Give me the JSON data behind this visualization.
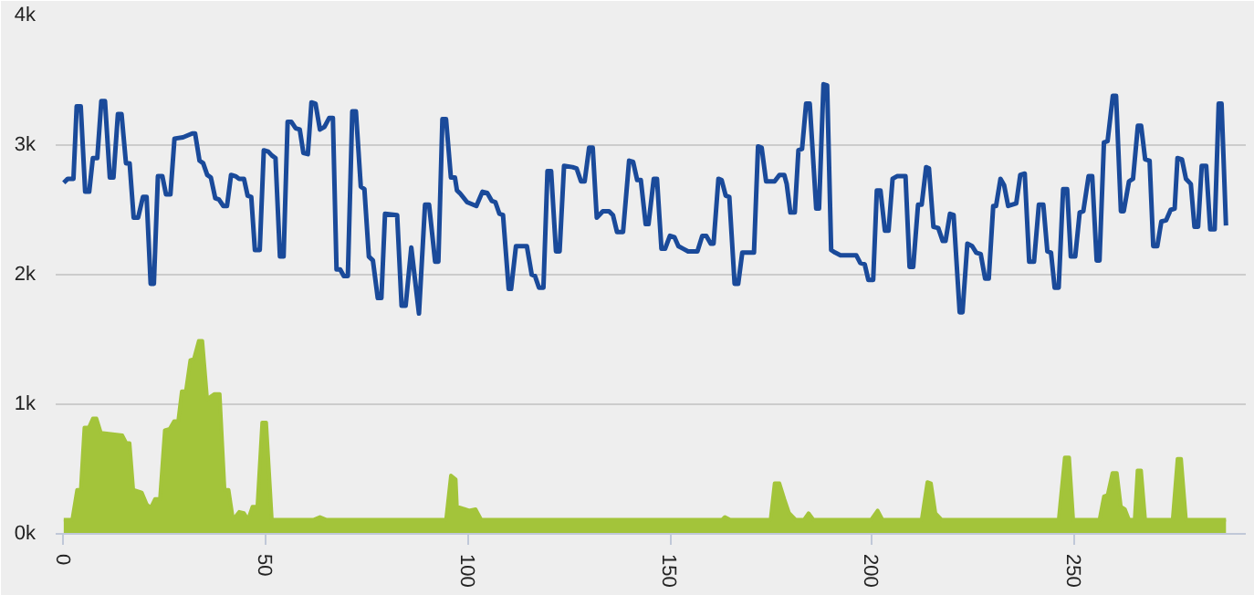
{
  "chart_data": {
    "type": "line",
    "xlim": [
      -2,
      292.5
    ],
    "ylim": [
      0,
      4000
    ],
    "xticks": [
      0,
      50,
      100,
      150,
      200,
      250
    ],
    "yticks": [
      {
        "value": 0,
        "label": "0k"
      },
      {
        "value": 1000,
        "label": "1k"
      },
      {
        "value": 2000,
        "label": "2k"
      },
      {
        "value": 3000,
        "label": "3k"
      },
      {
        "value": 4000,
        "label": "4k"
      }
    ],
    "grid": "y",
    "marker": "none",
    "line_style": "solid",
    "series": [
      {
        "color": "#1a4a9a",
        "x": [
          0,
          1,
          2.4,
          3.2,
          4.2,
          5.3,
          6.3,
          7.2,
          8.3,
          9.3,
          10.2,
          11.4,
          12.3,
          13.4,
          14.3,
          15.4,
          16.3,
          17.3,
          18.4,
          19.6,
          20.5,
          21.5,
          22.3,
          23.3,
          24.4,
          25.3,
          26.4,
          27.4,
          29.5,
          31.8,
          32.5,
          33.6,
          34.5,
          35.5,
          36.4,
          37.5,
          38.4,
          39.5,
          40.4,
          41.4,
          42.5,
          43.4,
          44.6,
          45.5,
          46.4,
          47.3,
          48.5,
          49.5,
          50.6,
          51.5,
          52.4,
          53.5,
          54.4,
          55.4,
          56.3,
          57.4,
          58.4,
          59.3,
          60.4,
          61.3,
          62.3,
          63.4,
          64.5,
          65.7,
          66.6,
          67.5,
          68.4,
          69.3,
          70.3,
          71.4,
          72.3,
          73.5,
          74.4,
          75.5,
          76.5,
          77.7,
          78.6,
          79.5,
          82.5,
          83.6,
          84.6,
          86.0,
          87.9,
          89.4,
          90.4,
          91.9,
          92.7,
          93.7,
          94.6,
          95.8,
          96.8,
          97.3,
          98.0,
          99.8,
          102.1,
          103.6,
          104.8,
          105.9,
          106.8,
          107.8,
          108.7,
          110.1,
          110.7,
          111.9,
          114.6,
          115.8,
          116.6,
          117.6,
          118.7,
          119.7,
          120.6,
          121.8,
          122.7,
          123.8,
          125.9,
          126.9,
          128.0,
          128.9,
          130.0,
          130.9,
          131.9,
          133.4,
          134.9,
          135.9,
          136.9,
          138.4,
          139.9,
          140.9,
          141.9,
          142.8,
          144.0,
          144.7,
          146.0,
          146.8,
          147.9,
          148.8,
          150.0,
          151.1,
          152.1,
          153.3,
          154.5,
          156.8,
          158.0,
          159.0,
          160.1,
          160.8,
          162.0,
          162.8,
          163.8,
          164.7,
          166.0,
          166.9,
          167.9,
          170.8,
          171.8,
          172.7,
          173.8,
          175.9,
          177.1,
          178.3,
          178.9,
          179.8,
          180.9,
          181.8,
          182.7,
          183.7,
          184.6,
          186.2,
          186.9,
          188.0,
          188.9,
          189.9,
          190.9,
          192.2,
          196.1,
          197.1,
          198.2,
          199.1,
          200.3,
          201.2,
          202.1,
          203.2,
          204.1,
          205.1,
          206.2,
          207.1,
          208.3,
          209.3,
          210.2,
          211.4,
          212.3,
          213.4,
          214.1,
          215.2,
          216.4,
          217.5,
          218.2,
          219.3,
          220.2,
          221.7,
          222.4,
          223.6,
          224.8,
          225.8,
          226.9,
          228.0,
          228.9,
          230.0,
          230.7,
          231.8,
          232.7,
          233.7,
          235.7,
          236.7,
          237.8,
          238.9,
          240.1,
          241.3,
          242.4,
          243.4,
          244.3,
          245.2,
          246.2,
          247.3,
          248.3,
          249.2,
          250.3,
          251.4,
          252.3,
          253.6,
          254.5,
          255.6,
          256.3,
          257.4,
          258.3,
          259.6,
          260.4,
          261.6,
          262.3,
          263.6,
          264.6,
          265.8,
          266.6,
          267.6,
          268.7,
          269.6,
          270.6,
          271.6,
          272.8,
          273.9,
          274.9,
          275.6,
          276.7,
          277.7,
          278.9,
          279.8,
          280.7,
          281.6,
          282.7,
          283.7,
          284.8,
          285.8,
          286.5,
          287.6
        ],
        "values": [
          2710,
          2740,
          2740,
          3300,
          3300,
          2640,
          2640,
          2900,
          2900,
          3340,
          3340,
          2750,
          2750,
          3240,
          3240,
          2860,
          2860,
          2440,
          2440,
          2600,
          2600,
          1930,
          1930,
          2760,
          2760,
          2620,
          2620,
          3050,
          3060,
          3090,
          3090,
          2880,
          2860,
          2770,
          2750,
          2590,
          2580,
          2530,
          2530,
          2770,
          2760,
          2740,
          2740,
          2610,
          2600,
          2190,
          2190,
          2960,
          2950,
          2920,
          2900,
          2140,
          2140,
          3180,
          3180,
          3130,
          3120,
          2940,
          2930,
          3330,
          3320,
          3120,
          3140,
          3210,
          3210,
          2040,
          2040,
          1990,
          1990,
          3260,
          3260,
          2680,
          2660,
          2140,
          2110,
          1820,
          1820,
          2470,
          2460,
          1760,
          1760,
          2210,
          1700,
          2540,
          2540,
          2100,
          2100,
          3200,
          3200,
          2750,
          2750,
          2650,
          2630,
          2560,
          2530,
          2640,
          2630,
          2570,
          2560,
          2470,
          2460,
          1890,
          1890,
          2220,
          2220,
          2000,
          1990,
          1900,
          1900,
          2800,
          2800,
          2180,
          2180,
          2840,
          2830,
          2820,
          2720,
          2720,
          2980,
          2980,
          2440,
          2490,
          2490,
          2460,
          2330,
          2330,
          2880,
          2870,
          2730,
          2730,
          2390,
          2390,
          2740,
          2740,
          2200,
          2200,
          2300,
          2290,
          2220,
          2200,
          2180,
          2180,
          2300,
          2300,
          2240,
          2240,
          2740,
          2730,
          2610,
          2600,
          1930,
          1930,
          2170,
          2170,
          2990,
          2980,
          2720,
          2720,
          2770,
          2770,
          2700,
          2480,
          2480,
          2960,
          2970,
          3320,
          3320,
          2510,
          2510,
          3470,
          3460,
          2190,
          2170,
          2150,
          2150,
          2090,
          2080,
          1960,
          1960,
          2650,
          2650,
          2340,
          2340,
          2740,
          2760,
          2760,
          2760,
          2060,
          2060,
          2540,
          2540,
          2830,
          2820,
          2370,
          2360,
          2260,
          2260,
          2470,
          2460,
          1710,
          1710,
          2240,
          2220,
          2170,
          2160,
          1970,
          1970,
          2530,
          2530,
          2740,
          2690,
          2530,
          2550,
          2770,
          2780,
          2100,
          2100,
          2540,
          2540,
          2180,
          2170,
          1900,
          1900,
          2660,
          2660,
          2140,
          2140,
          2480,
          2490,
          2760,
          2760,
          2110,
          2110,
          3020,
          3030,
          3380,
          3380,
          2490,
          2490,
          2720,
          2740,
          3150,
          3150,
          2890,
          2880,
          2220,
          2220,
          2410,
          2420,
          2500,
          2510,
          2900,
          2890,
          2740,
          2700,
          2370,
          2370,
          2840,
          2840,
          2350,
          2350,
          3320,
          3320,
          2380
        ]
      },
      {
        "type": "area",
        "color": "#a3c43a",
        "x": [
          0,
          2.1,
          3.3,
          4.2,
          5.1,
          6.2,
          7.2,
          8.1,
          9.2,
          14.5,
          15.5,
          16.3,
          17.2,
          19.3,
          20.5,
          21.5,
          22.6,
          23.8,
          25.0,
          26.2,
          27.3,
          28.3,
          29.2,
          30.2,
          31.3,
          32.2,
          33.4,
          34.3,
          35.5,
          36.4,
          37.3,
          38.6,
          39.8,
          40.8,
          41.9,
          43.4,
          44.6,
          45.6,
          46.7,
          47.9,
          49.1,
          50.1,
          51.5,
          61.9,
          63.4,
          64.9,
          94.6,
          95.8,
          97.0,
          97.3,
          98.4,
          100.3,
          101.9,
          103.3,
          162.9,
          163.6,
          164.8,
          174.9,
          175.9,
          177.1,
          178.3,
          179.5,
          181.1,
          183.2,
          184.3,
          185.5,
          199.8,
          201.4,
          202.6,
          212.3,
          213.7,
          214.6,
          215.7,
          217.2,
          246.2,
          247.7,
          248.8,
          249.8,
          256.3,
          257.4,
          258.3,
          259.5,
          260.6,
          261.6,
          262.6,
          263.6,
          265.0,
          265.7,
          266.6,
          267.6,
          274.4,
          275.6,
          276.5,
          277.7,
          287.6
        ],
        "values": [
          110,
          110,
          340,
          340,
          820,
          820,
          890,
          890,
          780,
          760,
          700,
          700,
          340,
          320,
          230,
          200,
          270,
          270,
          800,
          810,
          870,
          870,
          1100,
          1100,
          1340,
          1350,
          1490,
          1490,
          1040,
          1060,
          1080,
          1080,
          340,
          340,
          110,
          170,
          160,
          110,
          210,
          210,
          860,
          860,
          110,
          110,
          130,
          110,
          110,
          450,
          420,
          210,
          200,
          180,
          190,
          110,
          110,
          130,
          110,
          110,
          390,
          390,
          270,
          160,
          110,
          110,
          160,
          110,
          110,
          180,
          110,
          110,
          400,
          390,
          160,
          110,
          110,
          590,
          590,
          110,
          110,
          290,
          300,
          470,
          470,
          210,
          190,
          110,
          110,
          490,
          490,
          110,
          110,
          580,
          580,
          110,
          110
        ]
      }
    ]
  }
}
